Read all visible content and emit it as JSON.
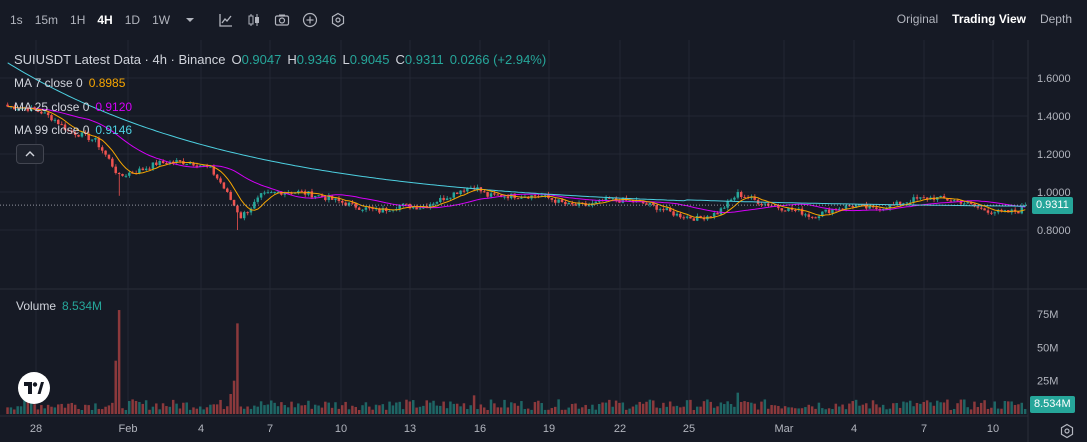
{
  "toolbar": {
    "timeframes": [
      {
        "label": "1s",
        "active": false
      },
      {
        "label": "15m",
        "active": false
      },
      {
        "label": "1H",
        "active": false
      },
      {
        "label": "4H",
        "active": true
      },
      {
        "label": "1D",
        "active": false
      },
      {
        "label": "1W",
        "active": false
      }
    ],
    "icons": [
      "chevron-down-icon",
      "indicators-icon",
      "candle-type-icon",
      "camera-icon",
      "add-icon",
      "settings-hex-icon"
    ],
    "views": [
      {
        "label": "Original",
        "active": false
      },
      {
        "label": "Trading View",
        "active": true
      },
      {
        "label": "Depth",
        "active": false
      }
    ]
  },
  "legend": {
    "title": "SUIUSDT Latest Data · 4h · Binance",
    "ohlc": {
      "O": "0.9047",
      "H": "0.9346",
      "L": "0.9045",
      "C": "0.9311"
    },
    "change": "0.0266 (+2.94%)",
    "ma": [
      {
        "label": "MA 7 close 0",
        "value": "0.8985",
        "color": "#f7a600"
      },
      {
        "label": "MA 25 close 0",
        "value": "0.9120",
        "color": "#d500f9"
      },
      {
        "label": "MA 99 close 0",
        "value": "0.9146",
        "color": "#4dd0e1"
      }
    ]
  },
  "volume": {
    "label": "Volume",
    "value": "8.534M"
  },
  "price_axis": {
    "ticks": [
      "1.6000",
      "1.4000",
      "1.2000",
      "1.0000",
      "0.8000"
    ],
    "current": "0.9311"
  },
  "volume_axis": {
    "ticks": [
      "75M",
      "50M",
      "25M"
    ],
    "current": "8.534M"
  },
  "time_axis": {
    "ticks": [
      "28",
      "Feb",
      "4",
      "7",
      "10",
      "13",
      "16",
      "19",
      "22",
      "25",
      "Mar",
      "4",
      "7",
      "10"
    ]
  },
  "colors": {
    "up": "#26a69a",
    "down": "#ef5350",
    "background": "#161a25",
    "grid": "#232733"
  },
  "chart_data": {
    "type": "candlestick",
    "ylim": [
      0.7,
      1.7
    ],
    "anchors": [
      [
        0,
        1.45
      ],
      [
        6,
        1.44
      ],
      [
        10,
        1.42
      ],
      [
        14,
        1.38
      ],
      [
        18,
        1.32
      ],
      [
        22,
        1.3
      ],
      [
        26,
        1.27
      ],
      [
        30,
        1.17
      ],
      [
        33,
        1.08
      ],
      [
        36,
        1.1
      ],
      [
        40,
        1.12
      ],
      [
        44,
        1.15
      ],
      [
        50,
        1.16
      ],
      [
        56,
        1.15
      ],
      [
        60,
        1.12
      ],
      [
        63,
        1.05
      ],
      [
        66,
        0.96
      ],
      [
        69,
        0.87
      ],
      [
        72,
        0.92
      ],
      [
        75,
        0.98
      ],
      [
        80,
        1.0
      ],
      [
        86,
        1.0
      ],
      [
        92,
        0.98
      ],
      [
        98,
        0.95
      ],
      [
        104,
        0.92
      ],
      [
        110,
        0.9
      ],
      [
        116,
        0.93
      ],
      [
        122,
        0.92
      ],
      [
        128,
        0.96
      ],
      [
        134,
        1.01
      ],
      [
        138,
        1.03
      ],
      [
        142,
        0.98
      ],
      [
        150,
        0.98
      ],
      [
        158,
        0.98
      ],
      [
        166,
        0.93
      ],
      [
        172,
        0.93
      ],
      [
        178,
        0.96
      ],
      [
        186,
        0.95
      ],
      [
        192,
        0.92
      ],
      [
        198,
        0.88
      ],
      [
        204,
        0.86
      ],
      [
        210,
        0.89
      ],
      [
        216,
        0.99
      ],
      [
        222,
        0.95
      ],
      [
        228,
        0.92
      ],
      [
        234,
        0.9
      ],
      [
        238,
        0.87
      ],
      [
        244,
        0.91
      ],
      [
        250,
        0.93
      ],
      [
        256,
        0.91
      ],
      [
        262,
        0.93
      ],
      [
        268,
        0.96
      ],
      [
        274,
        0.97
      ],
      [
        282,
        0.95
      ],
      [
        288,
        0.91
      ],
      [
        294,
        0.89
      ],
      [
        299,
        0.9
      ],
      [
        301,
        0.931
      ]
    ],
    "volume_peaks": [
      {
        "index": 33,
        "value": 78
      },
      {
        "index": 32,
        "value": 40
      },
      {
        "index": 68,
        "value": 68
      },
      {
        "index": 67,
        "value": 25
      },
      {
        "index": 66,
        "value": 15
      },
      {
        "index": 138,
        "value": 14
      },
      {
        "index": 216,
        "value": 16
      }
    ],
    "ma7": "0.8985",
    "ma25": "0.9120",
    "ma99": "0.9146"
  }
}
